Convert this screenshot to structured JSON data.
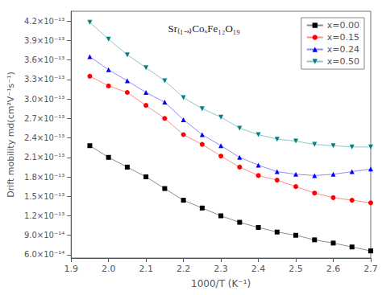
{
  "chart_data": {
    "type": "line",
    "xlabel": "1000/T (K⁻¹)",
    "ylabel": "Drift mobility md(cm²V⁻¹s⁻¹)",
    "annotation": "Sr₍₁₋ₓ₎CoₓFe₁₂O₁₉",
    "xlim": [
      1.9,
      2.7
    ],
    "xticks": [
      1.9,
      {
        "value": 2.0,
        "label": "2.0"
      },
      2.1,
      2.2,
      2.3,
      2.4,
      2.5,
      2.6,
      2.7
    ],
    "ylim": [
      5.5e-14,
      4.35e-13
    ],
    "yticks": [
      {
        "value": 6e-14,
        "label": "6.0×10⁻¹⁴"
      },
      {
        "value": 9e-14,
        "label": "9.0×10⁻¹⁴"
      },
      {
        "value": 1.2e-13,
        "label": "1.2×10⁻¹³"
      },
      {
        "value": 1.5e-13,
        "label": "1.5×10⁻¹³"
      },
      {
        "value": 1.8e-13,
        "label": "1.8×10⁻¹³"
      },
      {
        "value": 2.1e-13,
        "label": "2.1×10⁻¹³"
      },
      {
        "value": 2.4e-13,
        "label": "2.4×10⁻¹³"
      },
      {
        "value": 2.7e-13,
        "label": "2.7×10⁻¹³"
      },
      {
        "value": 3e-13,
        "label": "3.0×10⁻¹³"
      },
      {
        "value": 3.3e-13,
        "label": "3.3×10⁻¹³"
      },
      {
        "value": 3.6e-13,
        "label": "3.6×10⁻¹³"
      },
      {
        "value": 3.9e-13,
        "label": "3.9×10⁻¹³"
      },
      {
        "value": 4.2e-13,
        "label": "4.2×10⁻¹³"
      }
    ],
    "grid": false,
    "legend": "upper right",
    "series": [
      {
        "name": "x=0.00",
        "color": "#000000",
        "marker": "square",
        "x": [
          1.95,
          2.0,
          2.05,
          2.1,
          2.15,
          2.2,
          2.25,
          2.3,
          2.35,
          2.4,
          2.45,
          2.5,
          2.55,
          2.6,
          2.65,
          2.7
        ],
        "values": [
          2.28e-13,
          2.1e-13,
          1.95e-13,
          1.8e-13,
          1.62e-13,
          1.44e-13,
          1.32e-13,
          1.2e-13,
          1.1e-13,
          1.02e-13,
          9.5e-14,
          9e-14,
          8.3e-14,
          7.8e-14,
          7.2e-14,
          6.6e-14
        ]
      },
      {
        "name": "x=0.15",
        "color": "#FF0000",
        "marker": "circle",
        "x": [
          1.95,
          2.0,
          2.05,
          2.1,
          2.15,
          2.2,
          2.25,
          2.3,
          2.35,
          2.4,
          2.45,
          2.5,
          2.55,
          2.6,
          2.65,
          2.7
        ],
        "values": [
          3.35e-13,
          3.2e-13,
          3.1e-13,
          2.9e-13,
          2.7e-13,
          2.45e-13,
          2.3e-13,
          2.12e-13,
          1.95e-13,
          1.82e-13,
          1.75e-13,
          1.65e-13,
          1.55e-13,
          1.48e-13,
          1.44e-13,
          1.4e-13
        ]
      },
      {
        "name": "x=0.24",
        "color": "#0000FF",
        "marker": "triangle",
        "x": [
          1.95,
          2.0,
          2.05,
          2.1,
          2.15,
          2.2,
          2.25,
          2.3,
          2.35,
          2.4,
          2.45,
          2.5,
          2.55,
          2.6,
          2.65,
          2.7
        ],
        "values": [
          3.65e-13,
          3.45e-13,
          3.28e-13,
          3.1e-13,
          2.95e-13,
          2.68e-13,
          2.45e-13,
          2.28e-13,
          2.1e-13,
          1.98e-13,
          1.88e-13,
          1.84e-13,
          1.82e-13,
          1.84e-13,
          1.88e-13,
          1.92e-13
        ]
      },
      {
        "name": "x=0.50",
        "color": "#008080",
        "marker": "triangle-down",
        "x": [
          1.95,
          2.0,
          2.05,
          2.1,
          2.15,
          2.2,
          2.25,
          2.3,
          2.35,
          2.4,
          2.45,
          2.5,
          2.55,
          2.6,
          2.65,
          2.7
        ],
        "values": [
          4.18e-13,
          3.92e-13,
          3.68e-13,
          3.48e-13,
          3.28e-13,
          3.02e-13,
          2.85e-13,
          2.72e-13,
          2.55e-13,
          2.45e-13,
          2.38e-13,
          2.35e-13,
          2.3e-13,
          2.28e-13,
          2.26e-13,
          2.26e-13
        ]
      }
    ]
  }
}
